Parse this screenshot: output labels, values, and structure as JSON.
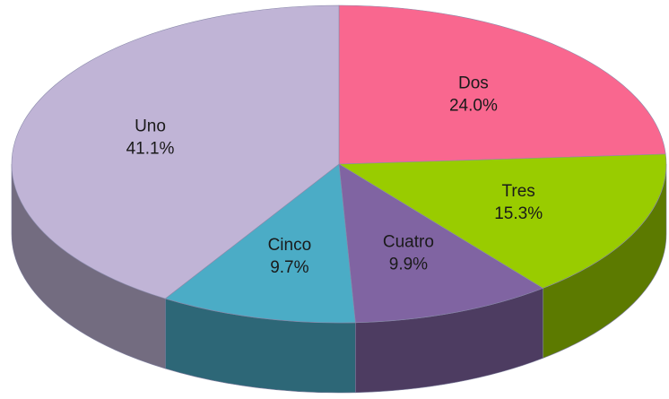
{
  "chart_data": {
    "type": "pie",
    "categories": [
      "Dos",
      "Tres",
      "Cuatro",
      "Cinco",
      "Uno"
    ],
    "values": [
      24.0,
      15.3,
      9.9,
      9.7,
      41.1
    ],
    "value_labels": [
      "24.0%",
      "15.3%",
      "9.9%",
      "9.7%",
      "41.1%"
    ],
    "colors": [
      "#f9678f",
      "#99cc00",
      "#8064a2",
      "#4bacc6",
      "#c0b4d6"
    ]
  }
}
